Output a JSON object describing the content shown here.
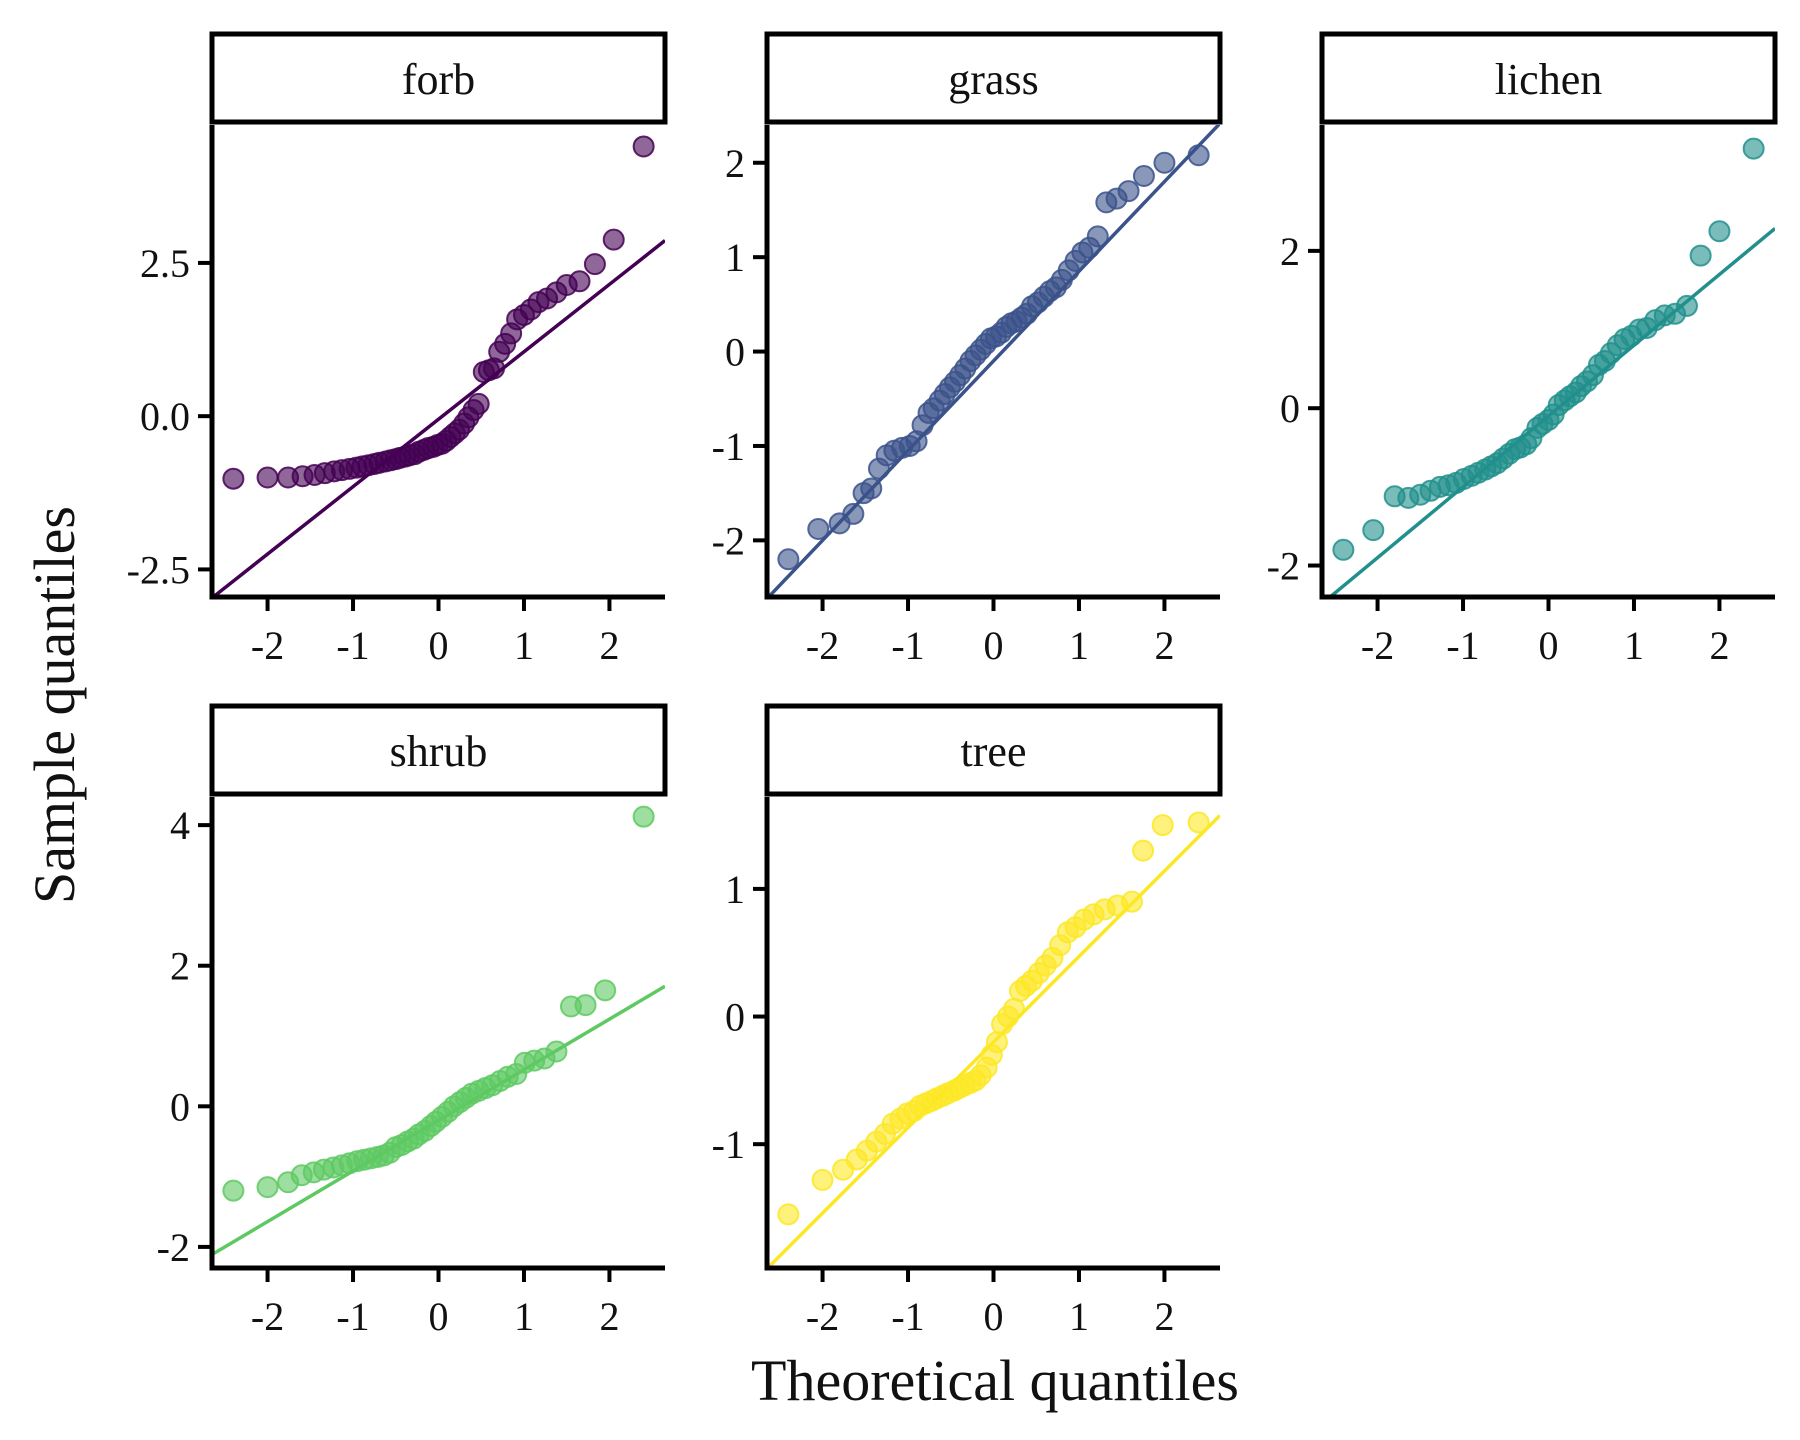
{
  "chart_data": {
    "type": "scatter",
    "title": "",
    "xlabel": "Theoretical quantiles",
    "ylabel": "Sample quantiles",
    "xlim": [
      -2.65,
      2.65
    ],
    "xticks": [
      -2,
      -1,
      0,
      1,
      2
    ],
    "legend": "none",
    "grid": false,
    "panels": [
      {
        "name": "forb",
        "color": "#440154",
        "ylim": [
          -2.95,
          4.75
        ],
        "yticks": [
          -2.5,
          0.0,
          2.5
        ],
        "ytick_labels": [
          "-2.5",
          "0.0",
          "2.5"
        ],
        "line": {
          "slope": 1.1,
          "intercept": -0.05
        },
        "x": [
          -2.4,
          -2.0,
          -1.76,
          -1.59,
          -1.45,
          -1.33,
          -1.22,
          -1.13,
          -1.04,
          -0.96,
          -0.89,
          -0.82,
          -0.75,
          -0.69,
          -0.62,
          -0.56,
          -0.5,
          -0.45,
          -0.39,
          -0.34,
          -0.28,
          -0.23,
          -0.17,
          -0.12,
          -0.06,
          -0.01,
          0.04,
          0.09,
          0.14,
          0.19,
          0.24,
          0.3,
          0.35,
          0.41,
          0.47,
          0.53,
          0.59,
          0.65,
          0.71,
          0.78,
          0.85,
          0.92,
          1.0,
          1.08,
          1.17,
          1.27,
          1.38,
          1.5,
          1.65,
          1.83,
          2.05,
          2.4
        ],
        "y": [
          -1.02,
          -1.0,
          -1.0,
          -0.98,
          -0.96,
          -0.93,
          -0.9,
          -0.88,
          -0.86,
          -0.84,
          -0.82,
          -0.8,
          -0.78,
          -0.76,
          -0.74,
          -0.72,
          -0.7,
          -0.68,
          -0.66,
          -0.64,
          -0.62,
          -0.58,
          -0.55,
          -0.52,
          -0.5,
          -0.47,
          -0.45,
          -0.4,
          -0.34,
          -0.28,
          -0.22,
          -0.12,
          -0.02,
          0.1,
          0.2,
          0.72,
          0.75,
          0.78,
          1.05,
          1.18,
          1.35,
          1.58,
          1.65,
          1.74,
          1.86,
          1.92,
          2.02,
          2.14,
          2.2,
          2.48,
          2.88,
          4.4
        ]
      },
      {
        "name": "grass",
        "color": "#3b528b",
        "ylim": [
          -2.6,
          2.4
        ],
        "yticks": [
          -2,
          -1,
          0,
          1,
          2
        ],
        "ytick_labels": [
          "-2",
          "-1",
          "0",
          "1",
          "2"
        ],
        "line": {
          "slope": 0.95,
          "intercept": -0.1
        },
        "x": [
          -2.4,
          -2.05,
          -1.8,
          -1.64,
          -1.52,
          -1.43,
          -1.34,
          -1.25,
          -1.16,
          -1.07,
          -0.98,
          -0.9,
          -0.83,
          -0.76,
          -0.7,
          -0.63,
          -0.57,
          -0.51,
          -0.45,
          -0.39,
          -0.33,
          -0.27,
          -0.21,
          -0.15,
          -0.09,
          -0.03,
          0.03,
          0.09,
          0.15,
          0.21,
          0.27,
          0.33,
          0.39,
          0.45,
          0.52,
          0.59,
          0.66,
          0.73,
          0.8,
          0.88,
          0.96,
          1.04,
          1.12,
          1.22,
          1.32,
          1.44,
          1.58,
          1.76,
          2.0,
          2.4
        ],
        "y": [
          -2.2,
          -1.88,
          -1.82,
          -1.72,
          -1.5,
          -1.45,
          -1.24,
          -1.1,
          -1.05,
          -1.02,
          -1.0,
          -0.95,
          -0.78,
          -0.65,
          -0.6,
          -0.52,
          -0.45,
          -0.38,
          -0.32,
          -0.25,
          -0.18,
          -0.1,
          -0.04,
          0.02,
          0.08,
          0.14,
          0.16,
          0.2,
          0.26,
          0.3,
          0.32,
          0.36,
          0.4,
          0.48,
          0.52,
          0.58,
          0.64,
          0.68,
          0.76,
          0.86,
          0.96,
          1.05,
          1.1,
          1.22,
          1.58,
          1.62,
          1.7,
          1.86,
          2.0,
          2.08
        ]
      },
      {
        "name": "lichen",
        "color": "#21908c",
        "ylim": [
          -2.4,
          3.6
        ],
        "yticks": [
          -2,
          0,
          2
        ],
        "ytick_labels": [
          "-2",
          "0",
          "2"
        ],
        "line": {
          "slope": 0.9,
          "intercept": -0.1
        },
        "x": [
          -2.4,
          -2.05,
          -1.8,
          -1.64,
          -1.5,
          -1.38,
          -1.27,
          -1.17,
          -1.08,
          -0.99,
          -0.9,
          -0.82,
          -0.74,
          -0.67,
          -0.6,
          -0.53,
          -0.46,
          -0.39,
          -0.33,
          -0.26,
          -0.2,
          -0.13,
          -0.07,
          0.0,
          0.06,
          0.12,
          0.19,
          0.25,
          0.32,
          0.38,
          0.45,
          0.52,
          0.59,
          0.66,
          0.73,
          0.81,
          0.89,
          0.97,
          1.06,
          1.15,
          1.25,
          1.36,
          1.48,
          1.62,
          1.78,
          2.0,
          2.4
        ],
        "y": [
          -1.8,
          -1.55,
          -1.12,
          -1.14,
          -1.1,
          -1.05,
          -1.0,
          -0.98,
          -0.95,
          -0.9,
          -0.86,
          -0.82,
          -0.78,
          -0.74,
          -0.7,
          -0.64,
          -0.58,
          -0.52,
          -0.5,
          -0.46,
          -0.38,
          -0.25,
          -0.2,
          -0.15,
          -0.08,
          0.04,
          0.1,
          0.15,
          0.2,
          0.28,
          0.34,
          0.42,
          0.55,
          0.6,
          0.7,
          0.8,
          0.88,
          0.92,
          1.0,
          1.02,
          1.12,
          1.18,
          1.2,
          1.3,
          1.94,
          2.25,
          3.3
        ]
      },
      {
        "name": "shrub",
        "color": "#5ec962",
        "ylim": [
          -2.3,
          4.4
        ],
        "yticks": [
          -2,
          0,
          2,
          4
        ],
        "ytick_labels": [
          "-2",
          "0",
          "2",
          "4"
        ],
        "line": {
          "slope": 0.72,
          "intercept": -0.2
        },
        "x": [
          -2.4,
          -2.0,
          -1.76,
          -1.6,
          -1.46,
          -1.34,
          -1.23,
          -1.13,
          -1.04,
          -0.95,
          -0.87,
          -0.79,
          -0.71,
          -0.64,
          -0.57,
          -0.5,
          -0.43,
          -0.36,
          -0.29,
          -0.23,
          -0.16,
          -0.09,
          -0.03,
          0.04,
          0.11,
          0.18,
          0.25,
          0.32,
          0.39,
          0.47,
          0.55,
          0.63,
          0.72,
          0.81,
          0.91,
          1.01,
          1.12,
          1.24,
          1.38,
          1.55,
          1.72,
          1.95,
          2.4
        ],
        "y": [
          -1.2,
          -1.15,
          -1.08,
          -0.98,
          -0.94,
          -0.9,
          -0.87,
          -0.84,
          -0.81,
          -0.78,
          -0.76,
          -0.74,
          -0.72,
          -0.7,
          -0.66,
          -0.58,
          -0.55,
          -0.5,
          -0.46,
          -0.4,
          -0.35,
          -0.28,
          -0.22,
          -0.15,
          -0.08,
          0.0,
          0.06,
          0.12,
          0.18,
          0.22,
          0.26,
          0.3,
          0.36,
          0.42,
          0.46,
          0.62,
          0.65,
          0.68,
          0.78,
          1.42,
          1.44,
          1.65,
          4.12
        ]
      },
      {
        "name": "tree",
        "color": "#fde725",
        "ylim": [
          -1.97,
          1.72
        ],
        "yticks": [
          -1,
          0,
          1
        ],
        "ytick_labels": [
          "-1",
          "0",
          "1"
        ],
        "line": {
          "slope": 0.67,
          "intercept": -0.2
        },
        "x": [
          -2.4,
          -2.0,
          -1.76,
          -1.6,
          -1.48,
          -1.37,
          -1.27,
          -1.18,
          -1.09,
          -1.01,
          -0.93,
          -0.86,
          -0.79,
          -0.72,
          -0.66,
          -0.59,
          -0.53,
          -0.46,
          -0.4,
          -0.34,
          -0.27,
          -0.21,
          -0.15,
          -0.08,
          -0.02,
          0.04,
          0.1,
          0.17,
          0.24,
          0.31,
          0.38,
          0.45,
          0.53,
          0.61,
          0.69,
          0.78,
          0.87,
          0.96,
          1.06,
          1.17,
          1.3,
          1.45,
          1.62,
          1.75,
          1.98,
          2.4
        ],
        "y": [
          -1.55,
          -1.28,
          -1.2,
          -1.12,
          -1.05,
          -0.98,
          -0.92,
          -0.84,
          -0.8,
          -0.76,
          -0.74,
          -0.7,
          -0.68,
          -0.66,
          -0.64,
          -0.62,
          -0.6,
          -0.58,
          -0.56,
          -0.54,
          -0.52,
          -0.5,
          -0.46,
          -0.4,
          -0.3,
          -0.2,
          -0.06,
          0.0,
          0.06,
          0.2,
          0.24,
          0.28,
          0.34,
          0.4,
          0.46,
          0.56,
          0.66,
          0.7,
          0.76,
          0.8,
          0.84,
          0.87,
          0.9,
          1.3,
          1.5,
          1.52
        ]
      }
    ]
  }
}
